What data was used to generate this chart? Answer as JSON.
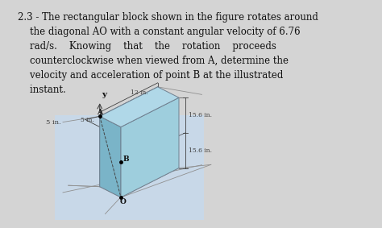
{
  "text_line1": "2.3 - The rectangular block shown in the figure rotates around",
  "text_line2": "    the diagonal AO with a constant angular velocity of 6.76",
  "text_line3": "    rad/s.    Knowing    that    the    rotation    proceeds",
  "text_line4": "    counterclockwise when viewed from A, determine the",
  "text_line5": "    velocity and acceleration of point B at the illustrated",
  "text_line6": "    instant.",
  "page_bg": "#d4d4d4",
  "paper_bg": "#f0f0f0",
  "diagram_bg": "#c8d8e8",
  "block_front_color": "#7ab4c8",
  "block_right_color": "#9ecedd",
  "block_top_color": "#b0d8e8",
  "edge_color": "#708090",
  "dim_line_color": "#404040",
  "label_color": "#111111",
  "text_color": "#111111",
  "dim_12": "12 in.",
  "dim_5": "5 in.",
  "dim_15_6_top": "15.6 in.",
  "dim_15_6_bot": "15.6 in.",
  "label_A": "A",
  "label_B": "B",
  "label_O": "O",
  "label_y": "y",
  "title_fontsize": 8.5,
  "label_fontsize": 6.5,
  "dim_fontsize": 5.5
}
